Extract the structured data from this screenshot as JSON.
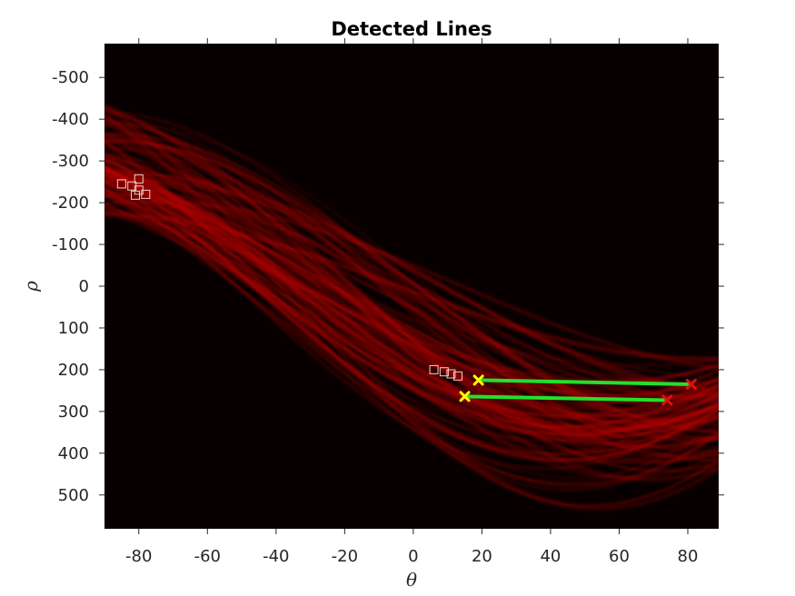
{
  "chart_data": {
    "type": "heatmap",
    "title": "Detected Lines",
    "xlabel": "θ",
    "ylabel": "ρ",
    "xlim": [
      -90,
      89
    ],
    "ylim": [
      -581,
      581
    ],
    "y_reversed": true,
    "xticks": [
      -80,
      -60,
      -40,
      -20,
      0,
      20,
      40,
      60,
      80
    ],
    "yticks": [
      -500,
      -400,
      -300,
      -200,
      -100,
      0,
      100,
      200,
      300,
      400,
      500
    ],
    "xtick_labels": [
      "-80",
      "-60",
      "-40",
      "-20",
      "0",
      "20",
      "40",
      "60",
      "80"
    ],
    "ytick_labels": [
      "-500",
      "-400",
      "-300",
      "-200",
      "-100",
      "0",
      "100",
      "200",
      "300",
      "400",
      "500"
    ],
    "background_color": "#080000",
    "colormap": "hot",
    "hough_peaks": [
      {
        "theta": -85,
        "rho": -245
      },
      {
        "theta": -82,
        "rho": -240
      },
      {
        "theta": -80,
        "rho": -257
      },
      {
        "theta": -80,
        "rho": -230
      },
      {
        "theta": -81,
        "rho": -218
      },
      {
        "theta": -78,
        "rho": -220
      },
      {
        "theta": 6,
        "rho": 200
      },
      {
        "theta": 9,
        "rho": 205
      },
      {
        "theta": 11,
        "rho": 210
      },
      {
        "theta": 13,
        "rho": 215
      }
    ],
    "detected_lines": [
      {
        "start": {
          "theta": 19,
          "rho": 225
        },
        "end": {
          "theta": 81,
          "rho": 235
        }
      },
      {
        "start": {
          "theta": 15,
          "rho": 264
        },
        "end": {
          "theta": 74,
          "rho": 273
        }
      }
    ],
    "colors": {
      "peak_marker": "#f2d0c0",
      "line": "#22e02a",
      "start_marker": "#ffff00",
      "end_marker": "#e01010"
    }
  }
}
